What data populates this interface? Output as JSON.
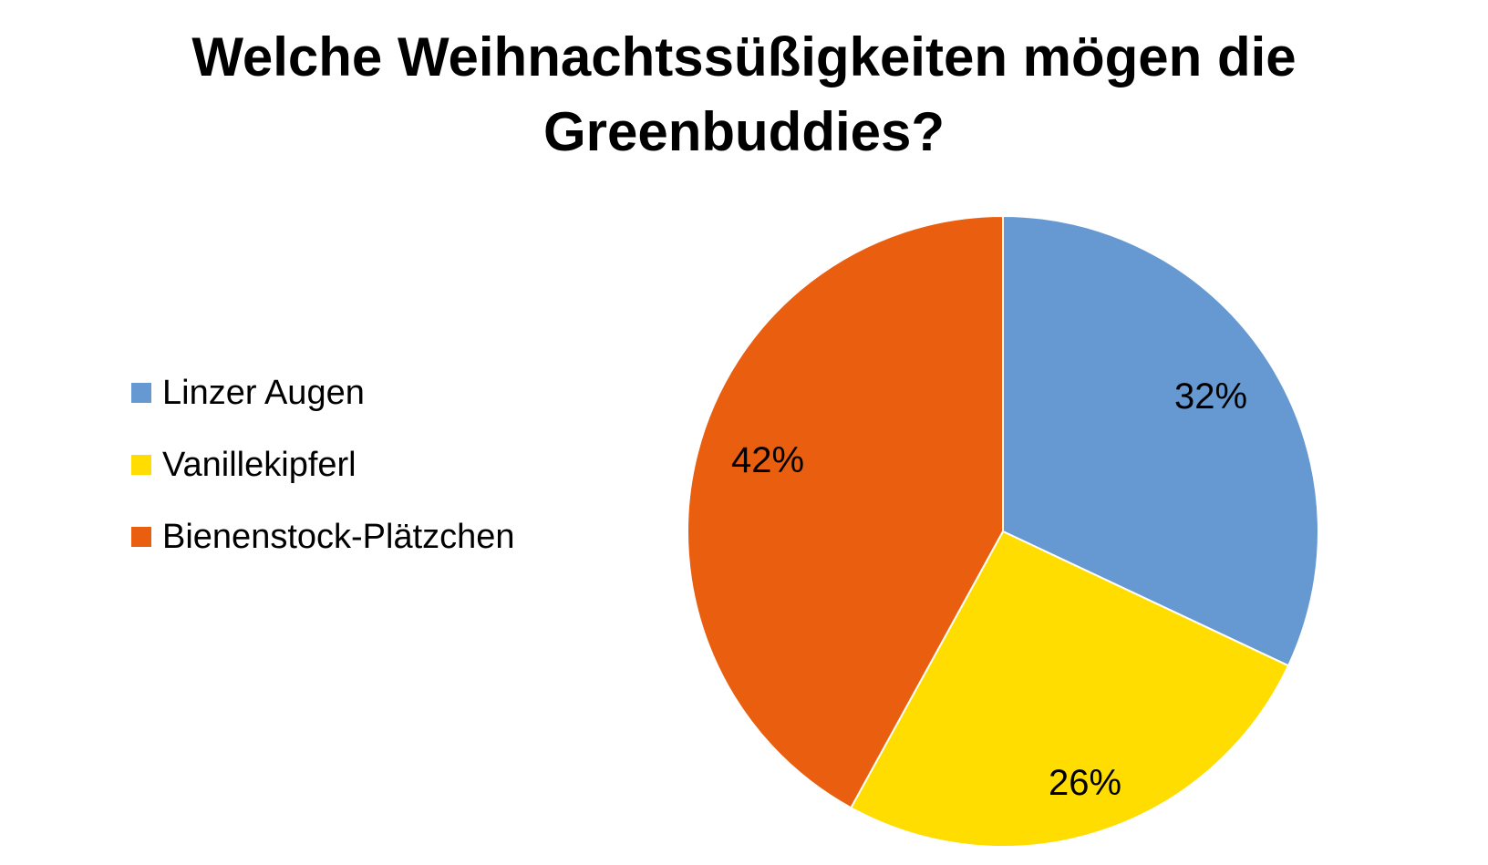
{
  "chart_data": {
    "type": "pie",
    "title": "Welche Weihnachtssüßigkeiten mögen die Greenbuddies?",
    "categories": [
      "Linzer Augen",
      "Vanillekipferl",
      "Bienenstock-Plätzchen"
    ],
    "values": [
      32,
      26,
      42
    ],
    "data_labels": [
      "32%",
      "26%",
      "42%"
    ],
    "colors": [
      "#6699D2",
      "#FFDD00",
      "#E95E0F"
    ],
    "legend_position": "left"
  }
}
